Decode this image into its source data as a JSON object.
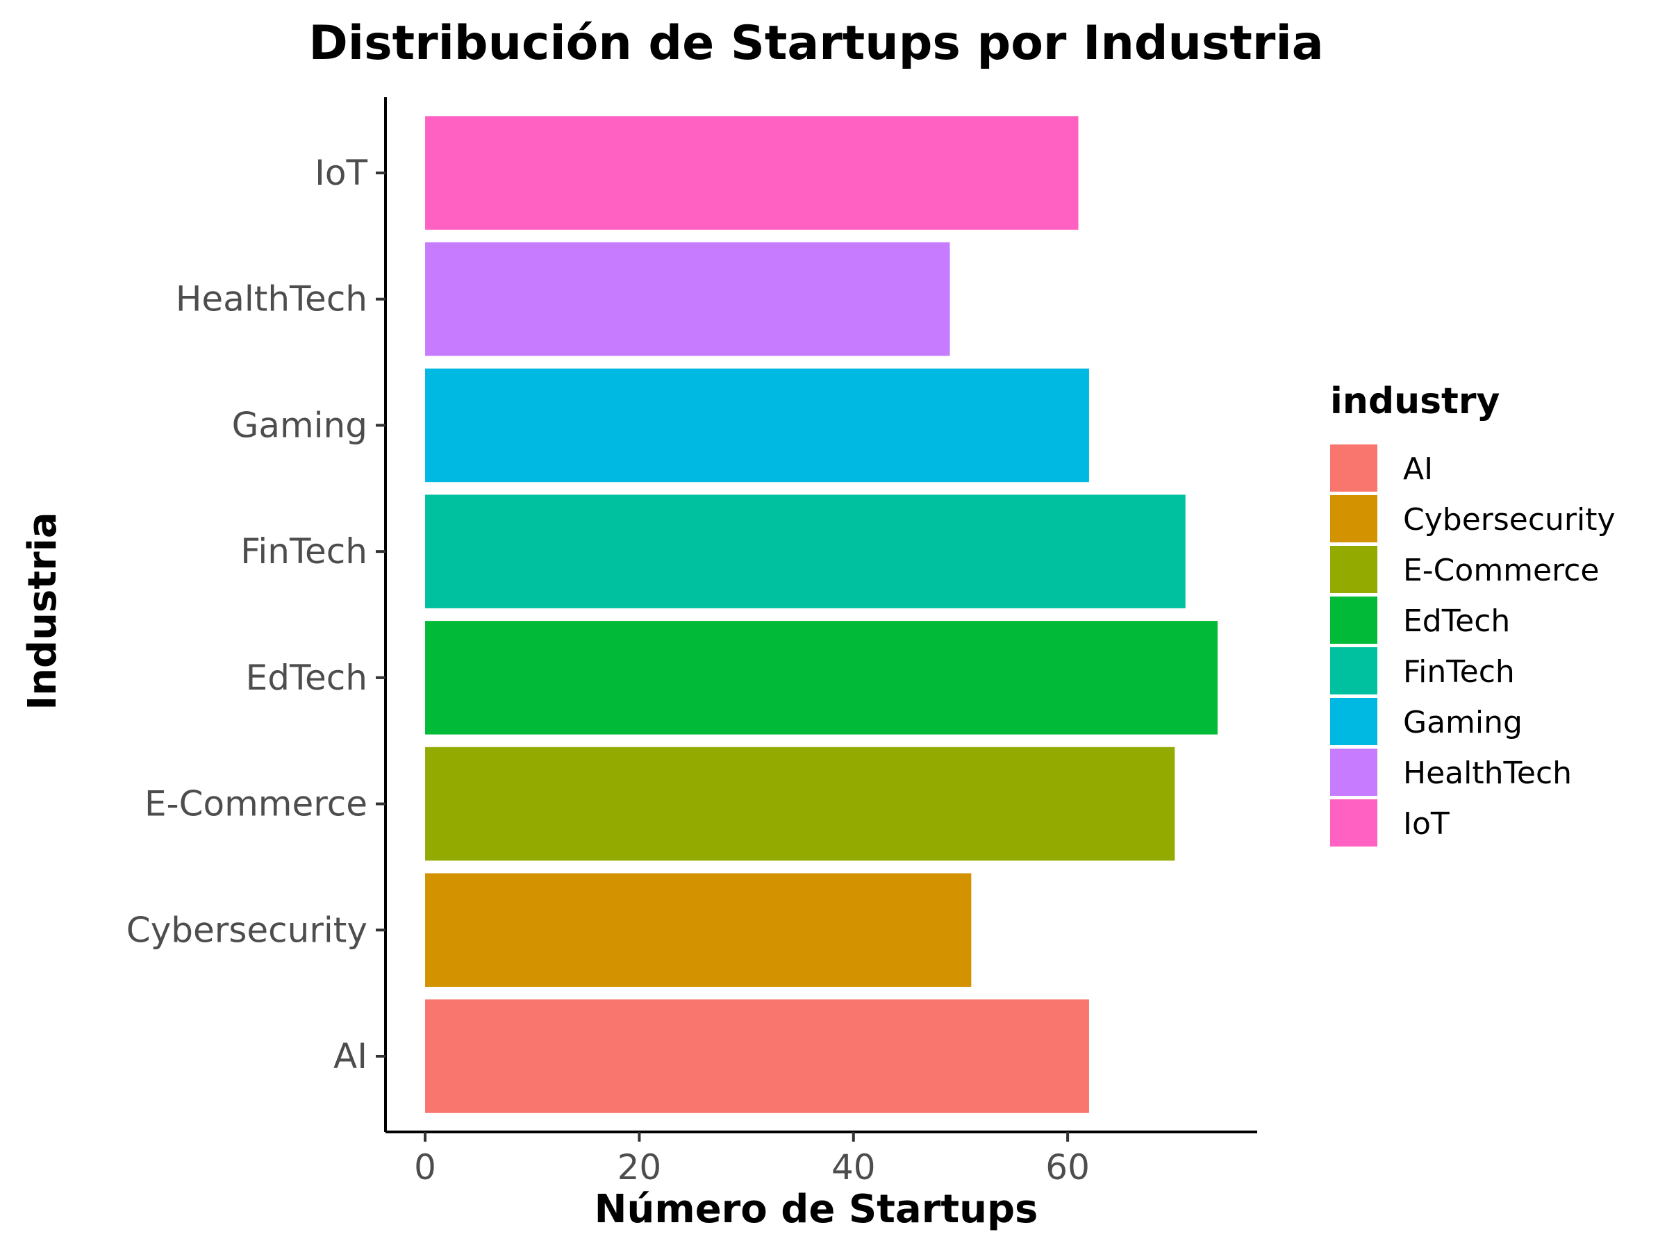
{
  "chart_data": {
    "type": "bar",
    "orientation": "horizontal",
    "title": "Distribución de Startups por Industria",
    "xlabel": "Número de Startups",
    "ylabel": "Industria",
    "categories": [
      "AI",
      "Cybersecurity",
      "E-Commerce",
      "EdTech",
      "FinTech",
      "Gaming",
      "HealthTech",
      "IoT"
    ],
    "values": [
      62,
      51,
      70,
      74,
      71,
      62,
      49,
      61
    ],
    "colors": [
      "#F8766D",
      "#D39200",
      "#93AA00",
      "#00BA38",
      "#00C19F",
      "#00B9E3",
      "#C77CFF",
      "#FF61C3"
    ],
    "xlim": [
      -3.7,
      77.7
    ],
    "xticks": [
      0,
      20,
      40,
      60
    ],
    "legend": {
      "title": "industry",
      "position": "right",
      "entries": [
        "AI",
        "Cybersecurity",
        "E-Commerce",
        "EdTech",
        "FinTech",
        "Gaming",
        "HealthTech",
        "IoT"
      ]
    },
    "grid": false
  }
}
